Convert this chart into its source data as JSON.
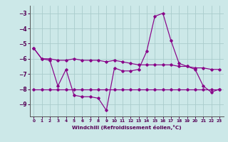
{
  "xlabel": "Windchill (Refroidissement éolien,°C)",
  "ylabel": "",
  "xlim": [
    -0.5,
    23.5
  ],
  "ylim": [
    -9.8,
    -2.5
  ],
  "yticks": [
    -9,
    -8,
    -7,
    -6,
    -5,
    -4,
    -3
  ],
  "xticks": [
    0,
    1,
    2,
    3,
    4,
    5,
    6,
    7,
    8,
    9,
    10,
    11,
    12,
    13,
    14,
    15,
    16,
    17,
    18,
    19,
    20,
    21,
    22,
    23
  ],
  "bg_color": "#cce8e8",
  "grid_color": "#aacccc",
  "line_color": "#880088",
  "series": [
    {
      "x": [
        0,
        1,
        2,
        3,
        4,
        5,
        6,
        7,
        8,
        9,
        10,
        11,
        12,
        13,
        14,
        15,
        16,
        17,
        18,
        19,
        20,
        21,
        22,
        23
      ],
      "y": [
        -5.3,
        -6.0,
        -6.0,
        -6.1,
        -6.1,
        -6.0,
        -6.1,
        -6.1,
        -6.1,
        -6.2,
        -6.1,
        -6.2,
        -6.3,
        -6.4,
        -6.4,
        -6.4,
        -6.4,
        -6.4,
        -6.5,
        -6.5,
        -6.6,
        -6.6,
        -6.7,
        -6.7
      ]
    },
    {
      "x": [
        0,
        1,
        2,
        3,
        4,
        5,
        6,
        7,
        8,
        9,
        10,
        11,
        12,
        13,
        14,
        15,
        16,
        17,
        18,
        19,
        20,
        21,
        22,
        23
      ],
      "y": [
        -5.3,
        -6.0,
        -6.1,
        -7.8,
        -6.7,
        -8.4,
        -8.5,
        -8.5,
        -8.6,
        -9.4,
        -6.6,
        -6.8,
        -6.8,
        -6.7,
        -5.5,
        -3.2,
        -3.0,
        -4.8,
        -6.3,
        -6.5,
        -6.7,
        -7.8,
        -8.2,
        -8.0
      ]
    },
    {
      "x": [
        0,
        1,
        2,
        3,
        4,
        5,
        6,
        7,
        8,
        9,
        10,
        11,
        12,
        13,
        14,
        15,
        16,
        17,
        18,
        19,
        20,
        21,
        22,
        23
      ],
      "y": [
        -8.0,
        -8.0,
        -8.0,
        -8.0,
        -8.0,
        -8.0,
        -8.0,
        -8.0,
        -8.0,
        -8.0,
        -8.0,
        -8.0,
        -8.0,
        -8.0,
        -8.0,
        -8.0,
        -8.0,
        -8.0,
        -8.0,
        -8.0,
        -8.0,
        -8.0,
        -8.0,
        -8.0
      ]
    }
  ]
}
